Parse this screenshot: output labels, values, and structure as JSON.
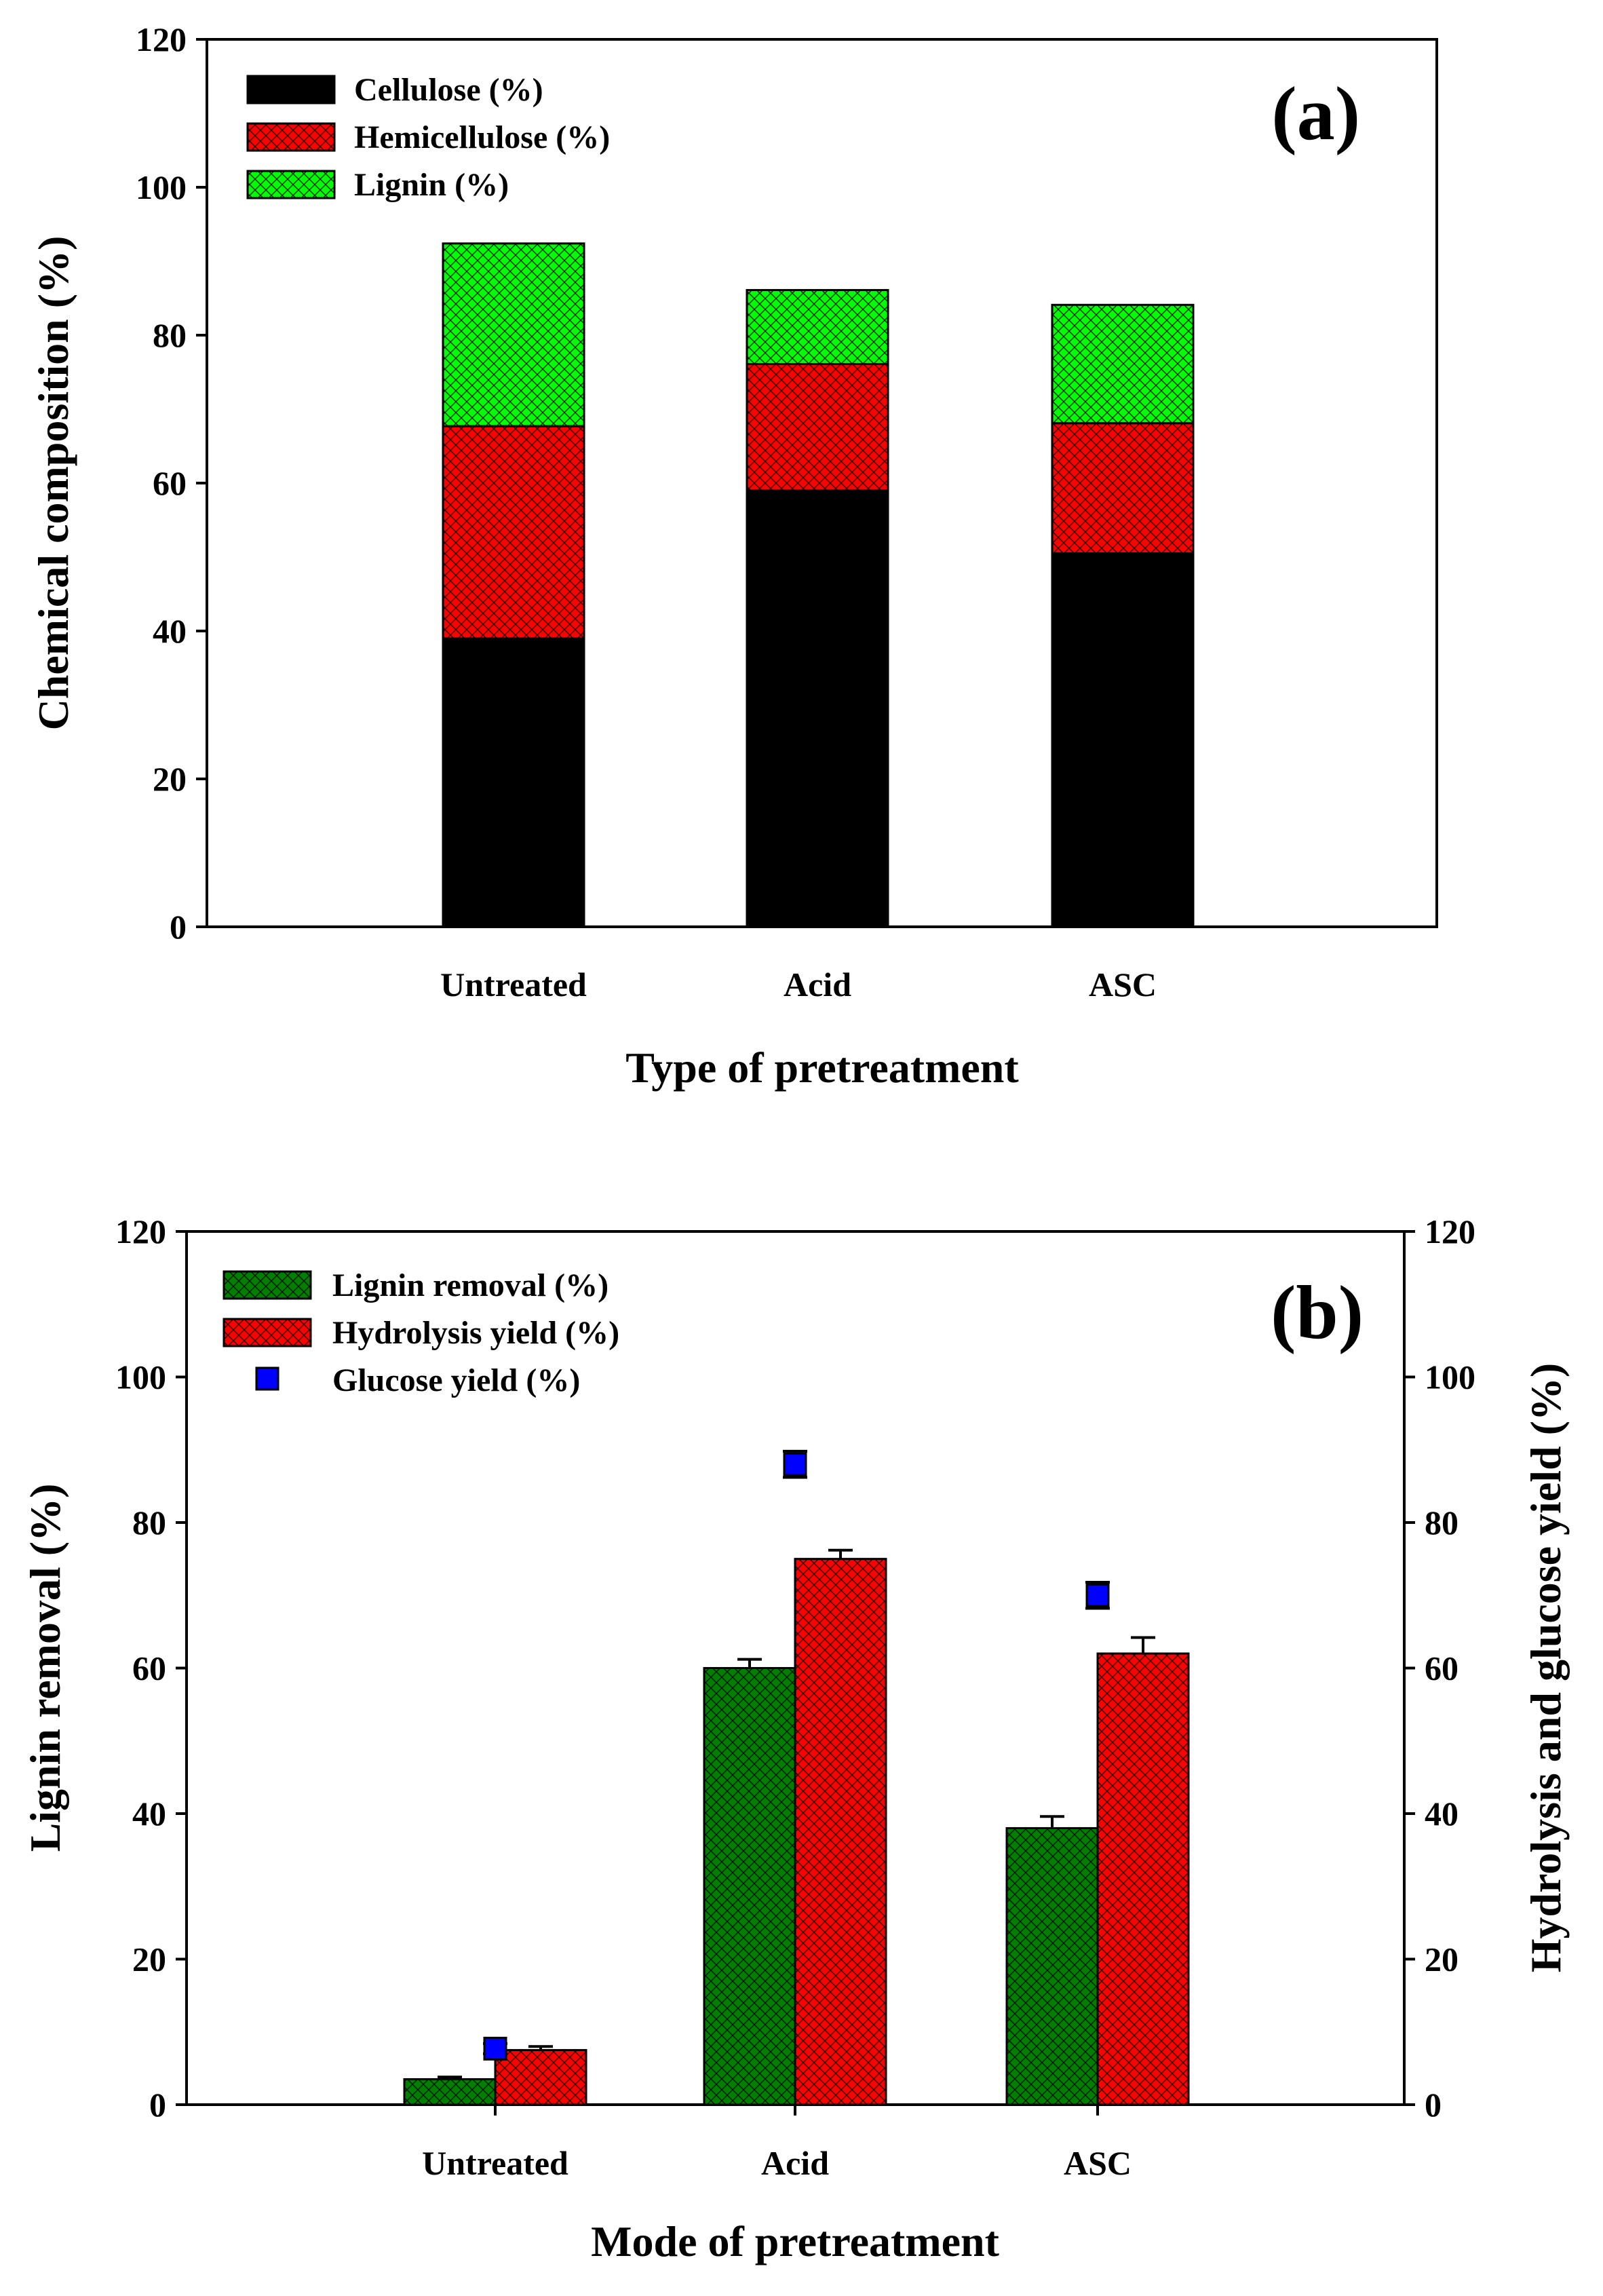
{
  "chart_data": [
    {
      "type": "bar",
      "stacked": true,
      "panel_label": "(a)",
      "categories": [
        "Untreated",
        "Acid",
        "ASC"
      ],
      "series": [
        {
          "name": "Cellulose (%)",
          "values": [
            39,
            59,
            50.5
          ],
          "color": "#000000",
          "pattern": "solid"
        },
        {
          "name": "Hemicellulose (%)",
          "values": [
            28.7,
            17.1,
            17.6
          ],
          "color": "#ff0000",
          "pattern": "crosshatch"
        },
        {
          "name": "Lignin (%)",
          "values": [
            24.7,
            10,
            16
          ],
          "color": "#00ff00",
          "pattern": "crosshatch"
        }
      ],
      "xlabel": "Type of pretreatment",
      "ylabel": "Chemical composition (%)",
      "ylim": [
        0,
        120
      ],
      "yticks": [
        "0",
        "20",
        "40",
        "60",
        "80",
        "100",
        "120"
      ],
      "legend_position": "top-left",
      "grid": false
    },
    {
      "type": "bar",
      "panel_label": "(b)",
      "categories": [
        "Untreated",
        "Acid",
        "ASC"
      ],
      "series": [
        {
          "name": "Lignin removal (%)",
          "values": [
            3.5,
            60,
            38
          ],
          "errors": [
            0.3,
            1.2,
            1.6
          ],
          "color": "#008000",
          "pattern": "crosshatch",
          "axis": "left"
        },
        {
          "name": "Hydrolysis yield (%)",
          "values": [
            7.5,
            75,
            62
          ],
          "errors": [
            0.5,
            1.2,
            2.2
          ],
          "color": "#ff0000",
          "pattern": "crosshatch",
          "axis": "right"
        },
        {
          "name": "Glucose yield (%)",
          "values": [
            7.7,
            88,
            70
          ],
          "errors": [
            0.7,
            1.8,
            1.8
          ],
          "color": "#0000ff",
          "marker": "square",
          "axis": "right"
        }
      ],
      "xlabel": "Mode of pretreatment",
      "ylabel": "Lignin removal (%)",
      "ylabel_right": "Hydrolysis and glucose yield (%)",
      "ylim": [
        0,
        120
      ],
      "ylim_right": [
        0,
        120
      ],
      "yticks": [
        "0",
        "20",
        "40",
        "60",
        "80",
        "100",
        "120"
      ],
      "legend_position": "top-left",
      "grid": false
    }
  ]
}
